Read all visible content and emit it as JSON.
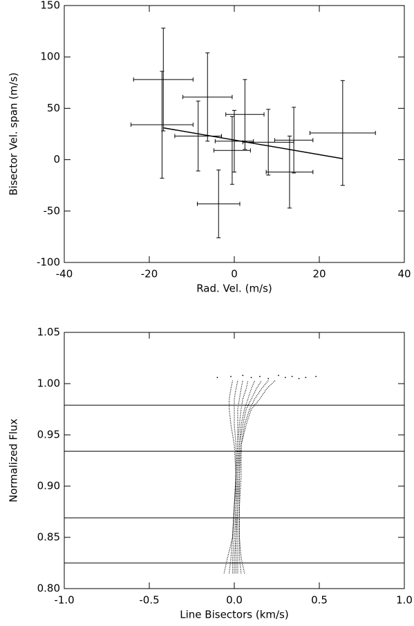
{
  "chart_data": [
    {
      "type": "errorbar",
      "xlabel": "Rad. Vel. (m/s)",
      "ylabel": "Bisector Vel. span (m/s)",
      "xlim": [
        -40,
        40
      ],
      "xticks": [
        -40,
        -20,
        0,
        20,
        40
      ],
      "ylim": [
        -100,
        150
      ],
      "yticks": [
        -100,
        -50,
        0,
        50,
        100,
        150
      ],
      "x": [
        -16.7,
        -17,
        -6.3,
        -8.5,
        2.5,
        -0.5,
        0,
        -3.7,
        8,
        13,
        14,
        25.5
      ],
      "values": [
        78,
        34,
        61,
        23,
        44,
        9,
        18,
        -43,
        17,
        -12,
        19,
        26
      ],
      "xerr": [
        7,
        7.3,
        5.8,
        5.5,
        4.5,
        4.3,
        4.5,
        5,
        6,
        5.5,
        4.5,
        7.7
      ],
      "yerr": [
        50,
        52,
        43,
        34,
        34,
        33,
        30,
        33,
        32,
        35,
        32,
        51
      ],
      "fit": {
        "x": [
          -16.7,
          25.5
        ],
        "y": [
          31,
          1
        ]
      },
      "color": "#000000"
    },
    {
      "type": "line",
      "xlabel": "Line Bisectors (km/s)",
      "ylabel": "Normalized Flux",
      "xlim": [
        -1,
        1
      ],
      "xticks": [
        {
          "value": -1,
          "label": "-1.0"
        },
        -0.5,
        {
          "value": 0,
          "label": "0.0"
        },
        0.5,
        {
          "value": 1,
          "label": "1.0"
        }
      ],
      "ylim": [
        0.8,
        1.05
      ],
      "yticks": [
        {
          "value": 0.8,
          "label": "0.80"
        },
        0.85,
        {
          "value": 0.9,
          "label": "0.90"
        },
        0.95,
        {
          "value": 1,
          "label": "1.00"
        },
        1.05
      ],
      "hlines": [
        0.979,
        0.934,
        0.869,
        0.825
      ],
      "series": [
        {
          "x": [
            -0.06,
            -0.04,
            -0.01,
            0.0,
            0.01,
            0.0,
            -0.02,
            -0.03,
            -0.03,
            -0.02,
            -0.01
          ],
          "y": [
            0.815,
            0.83,
            0.85,
            0.88,
            0.91,
            0.94,
            0.96,
            0.975,
            0.985,
            0.995,
            1.003
          ]
        },
        {
          "x": [
            -0.03,
            -0.02,
            -0.01,
            0.0,
            0.01,
            0.01,
            0.0,
            0.0,
            0.0,
            0.01,
            0.02
          ],
          "y": [
            0.815,
            0.83,
            0.85,
            0.88,
            0.91,
            0.94,
            0.96,
            0.975,
            0.985,
            0.995,
            1.003
          ]
        },
        {
          "x": [
            -0.01,
            -0.01,
            0.0,
            0.01,
            0.01,
            0.02,
            0.02,
            0.02,
            0.03,
            0.04,
            0.05
          ],
          "y": [
            0.815,
            0.83,
            0.85,
            0.88,
            0.91,
            0.94,
            0.96,
            0.975,
            0.985,
            0.995,
            1.003
          ]
        },
        {
          "x": [
            0.0,
            0.0,
            0.01,
            0.01,
            0.02,
            0.02,
            0.03,
            0.04,
            0.05,
            0.07,
            0.08
          ],
          "y": [
            0.815,
            0.83,
            0.85,
            0.88,
            0.91,
            0.94,
            0.96,
            0.975,
            0.985,
            0.995,
            1.003
          ]
        },
        {
          "x": [
            0.01,
            0.01,
            0.01,
            0.02,
            0.02,
            0.03,
            0.04,
            0.06,
            0.08,
            0.1,
            0.12
          ],
          "y": [
            0.815,
            0.83,
            0.85,
            0.88,
            0.91,
            0.94,
            0.96,
            0.975,
            0.985,
            0.995,
            1.003
          ]
        },
        {
          "x": [
            0.02,
            0.02,
            0.02,
            0.02,
            0.03,
            0.03,
            0.05,
            0.07,
            0.1,
            0.13,
            0.16
          ],
          "y": [
            0.815,
            0.83,
            0.85,
            0.88,
            0.91,
            0.94,
            0.96,
            0.975,
            0.985,
            0.995,
            1.003
          ]
        },
        {
          "x": [
            0.04,
            0.03,
            0.03,
            0.03,
            0.03,
            0.04,
            0.06,
            0.09,
            0.12,
            0.16,
            0.2
          ],
          "y": [
            0.815,
            0.83,
            0.85,
            0.88,
            0.91,
            0.94,
            0.96,
            0.975,
            0.985,
            0.995,
            1.003
          ]
        },
        {
          "x": [
            0.06,
            0.04,
            0.03,
            0.03,
            0.04,
            0.04,
            0.07,
            0.1,
            0.15,
            0.19,
            0.24
          ],
          "y": [
            0.815,
            0.83,
            0.85,
            0.88,
            0.91,
            0.94,
            0.96,
            0.975,
            0.985,
            0.995,
            1.003
          ]
        }
      ],
      "points": {
        "x": [
          -0.1,
          -0.02,
          0.05,
          0.1,
          0.15,
          0.2,
          0.26,
          0.3,
          0.34,
          0.38,
          0.42,
          0.48
        ],
        "y": [
          1.006,
          1.007,
          1.008,
          1.006,
          1.007,
          1.005,
          1.008,
          1.006,
          1.007,
          1.005,
          1.006,
          1.007
        ]
      },
      "color": "#000000"
    }
  ]
}
